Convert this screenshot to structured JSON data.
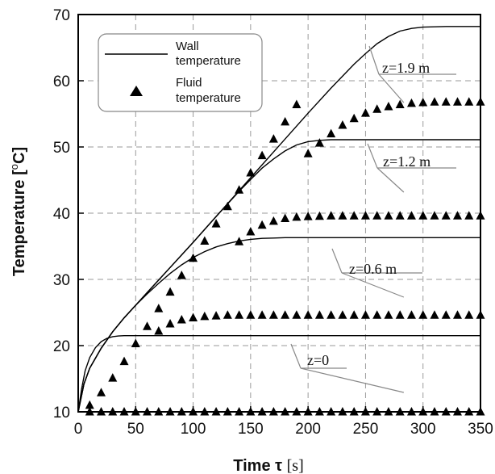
{
  "chart_data": {
    "type": "line",
    "xlabel_main": "Time τ",
    "xlabel_unit": "[s]",
    "ylabel": "Temperature [°C]",
    "ylabel_parts": {
      "main": "Temperature [",
      "sup": "o",
      "end": "C]"
    },
    "xlim": [
      0,
      350
    ],
    "ylim": [
      10,
      70
    ],
    "xticks": [
      0,
      50,
      100,
      150,
      200,
      250,
      300,
      350
    ],
    "yticks": [
      10,
      20,
      30,
      40,
      50,
      60,
      70
    ],
    "grid": true,
    "legend_position": "top-left",
    "legend": {
      "wall": {
        "line1": "Wall",
        "line2": "temperature"
      },
      "fluid": {
        "line1": "Fluid",
        "line2": "temperature"
      }
    },
    "annotations": [
      {
        "text": "z=1.9 m"
      },
      {
        "text": "z=1.2 m"
      },
      {
        "text": "z=0.6 m"
      },
      {
        "text": "z=0"
      }
    ],
    "series": [
      {
        "kind": "wall",
        "z": "z=0",
        "x": [
          0,
          3,
          6,
          10,
          15,
          20,
          25,
          30,
          35,
          40,
          50,
          60,
          80,
          100,
          150,
          200,
          250,
          300,
          350
        ],
        "y": [
          10,
          13.5,
          16.2,
          18.2,
          19.7,
          20.6,
          21.1,
          21.35,
          21.45,
          21.5,
          21.5,
          21.5,
          21.5,
          21.5,
          21.5,
          21.5,
          21.5,
          21.5,
          21.5
        ]
      },
      {
        "kind": "wall",
        "z": "z=0.6 m",
        "x": [
          0,
          5,
          10,
          20,
          30,
          40,
          50,
          60,
          70,
          80,
          90,
          100,
          110,
          120,
          130,
          140,
          150,
          160,
          170,
          180,
          200,
          250,
          300,
          350
        ],
        "y": [
          10,
          14.2,
          16.6,
          19.6,
          22.1,
          24.2,
          26.1,
          27.8,
          29.4,
          30.9,
          32.2,
          33.3,
          34.2,
          34.9,
          35.4,
          35.8,
          36.05,
          36.2,
          36.25,
          36.3,
          36.3,
          36.3,
          36.3,
          36.3
        ]
      },
      {
        "kind": "wall",
        "z": "z=1.2 m",
        "x": [
          0,
          5,
          10,
          20,
          30,
          40,
          50,
          60,
          80,
          100,
          120,
          140,
          150,
          160,
          170,
          180,
          190,
          200,
          210,
          220,
          240,
          260,
          300,
          350
        ],
        "y": [
          10,
          14.2,
          16.6,
          19.6,
          22.1,
          24.2,
          26.1,
          28,
          31.8,
          35.6,
          39.5,
          43.3,
          45.1,
          46.8,
          48.2,
          49.4,
          50.3,
          50.8,
          51,
          51.1,
          51.1,
          51.1,
          51.1,
          51.1
        ]
      },
      {
        "kind": "wall",
        "z": "z=1.9 m",
        "x": [
          0,
          5,
          10,
          20,
          30,
          40,
          50,
          60,
          80,
          100,
          120,
          140,
          160,
          180,
          200,
          220,
          240,
          250,
          260,
          270,
          280,
          290,
          300,
          320,
          350
        ],
        "y": [
          10,
          14.2,
          16.6,
          19.6,
          22.1,
          24.2,
          26.1,
          28,
          31.8,
          35.6,
          39.5,
          43.4,
          47.3,
          51.2,
          55.1,
          58.9,
          62.5,
          64.1,
          65.6,
          66.7,
          67.5,
          67.9,
          68.1,
          68.2,
          68.2
        ]
      },
      {
        "kind": "fluid",
        "z": "z=0",
        "x": [
          10,
          20,
          30,
          40,
          50,
          60,
          70,
          80,
          90,
          100,
          110,
          120,
          130,
          140,
          150,
          160,
          170,
          180,
          190,
          200,
          210,
          220,
          230,
          240,
          250,
          260,
          270,
          280,
          290,
          300,
          310,
          320,
          330,
          340,
          350
        ],
        "y": [
          10,
          10,
          10,
          10,
          10,
          10,
          10,
          10,
          10,
          10,
          10,
          10,
          10,
          10,
          10,
          10,
          10,
          10,
          10,
          10,
          10,
          10,
          10,
          10,
          10,
          10,
          10,
          10,
          10,
          10,
          10,
          10,
          10,
          10,
          10
        ]
      },
      {
        "kind": "fluid",
        "z": "z=0.6 m",
        "x": [
          70,
          80,
          90,
          100,
          110,
          120,
          130,
          140,
          150,
          160,
          170,
          180,
          190,
          200,
          210,
          220,
          230,
          240,
          250,
          260,
          270,
          280,
          290,
          300,
          310,
          320,
          330,
          340,
          350
        ],
        "y": [
          22.2,
          23.3,
          23.9,
          24.2,
          24.4,
          24.5,
          24.6,
          24.6,
          24.6,
          24.6,
          24.6,
          24.6,
          24.6,
          24.6,
          24.6,
          24.6,
          24.6,
          24.6,
          24.6,
          24.6,
          24.6,
          24.6,
          24.6,
          24.6,
          24.6,
          24.6,
          24.6,
          24.6,
          24.6
        ]
      },
      {
        "kind": "fluid",
        "z": "z=1.2 m",
        "x": [
          140,
          150,
          160,
          170,
          180,
          190,
          200,
          210,
          220,
          230,
          240,
          250,
          260,
          270,
          280,
          290,
          300,
          310,
          320,
          330,
          340,
          350
        ],
        "y": [
          35.7,
          37.2,
          38.2,
          38.8,
          39.2,
          39.4,
          39.5,
          39.55,
          39.6,
          39.6,
          39.6,
          39.6,
          39.6,
          39.6,
          39.6,
          39.6,
          39.6,
          39.6,
          39.6,
          39.6,
          39.6,
          39.6
        ]
      },
      {
        "kind": "fluid",
        "z": "z=1.9 m",
        "x": [
          10,
          20,
          30,
          40,
          50,
          60,
          70,
          80,
          90,
          100,
          110,
          120,
          130,
          140,
          150,
          160,
          170,
          180,
          190,
          200,
          210,
          220,
          230,
          240,
          250,
          260,
          270,
          280,
          290,
          300,
          310,
          320,
          330,
          340,
          350
        ],
        "y": [
          11,
          12.9,
          15.1,
          17.6,
          20.3,
          22.9,
          25.6,
          28.1,
          30.6,
          33.2,
          35.8,
          38.4,
          41,
          43.5,
          46.1,
          48.7,
          51.2,
          53.8,
          56.4,
          49,
          50.6,
          52,
          53.3,
          54.3,
          55.1,
          55.7,
          56.1,
          56.4,
          56.6,
          56.7,
          56.8,
          56.8,
          56.8,
          56.8,
          56.8
        ]
      }
    ]
  }
}
